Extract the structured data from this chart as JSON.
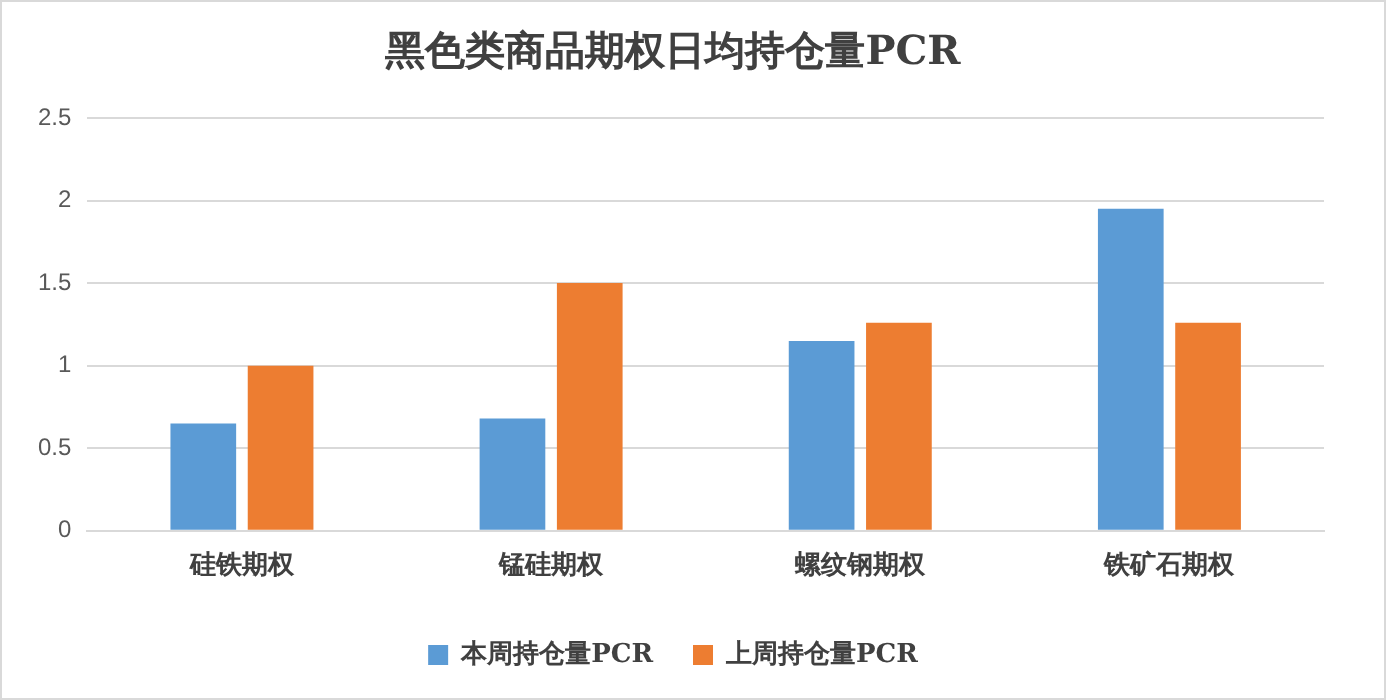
{
  "chart_data": {
    "type": "bar",
    "title": "黑色类商品期权日均持仓量PCR",
    "categories": [
      "硅铁期权",
      "锰硅期权",
      "螺纹钢期权",
      "铁矿石期权"
    ],
    "series": [
      {
        "name": "本周持仓量PCR",
        "color": "#5b9bd5",
        "values": [
          0.65,
          0.68,
          1.15,
          1.95
        ]
      },
      {
        "name": "上周持仓量PCR",
        "color": "#ed7d31",
        "values": [
          1.0,
          1.5,
          1.26,
          1.26
        ]
      }
    ],
    "ylim": [
      0,
      2.5
    ],
    "yticks": [
      0,
      0.5,
      1,
      1.5,
      2,
      2.5
    ],
    "grid": "y",
    "legend": "bottom"
  }
}
